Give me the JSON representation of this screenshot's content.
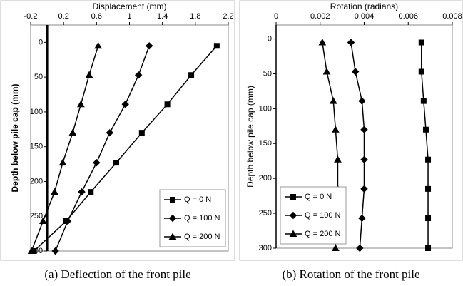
{
  "chart_data": [
    {
      "type": "line",
      "x_label": "Displacement (mm)",
      "y_label": "Depth below pile cap (mm)",
      "caption": "(a) Deflection of the front pile",
      "depth": [
        5,
        47,
        89,
        130,
        173,
        215,
        257,
        300
      ],
      "series": [
        {
          "name": "Q = 0 N",
          "color": "#000000",
          "marker": "square",
          "values": [
            2.06,
            1.75,
            1.46,
            1.15,
            0.84,
            0.53,
            0.23,
            -0.16
          ]
        },
        {
          "name": "Q = 100 N",
          "color": "#000000",
          "marker": "diamond",
          "values": [
            1.24,
            1.11,
            0.95,
            0.76,
            0.6,
            0.42,
            0.25,
            0.1
          ]
        },
        {
          "name": "Q = 200 N",
          "color": "#000000",
          "marker": "triangle",
          "values": [
            0.62,
            0.51,
            0.41,
            0.31,
            0.19,
            0.09,
            -0.05,
            -0.19
          ]
        }
      ],
      "xlim": [
        -0.2,
        2.2
      ],
      "xticks": [
        -0.2,
        0.2,
        0.6,
        1,
        1.4,
        1.8,
        2.2
      ],
      "ylim": [
        -25,
        300
      ],
      "yticks": [
        0,
        50,
        100,
        150,
        200,
        250,
        300
      ],
      "y_inverted": true,
      "x_axis_position": "top",
      "y_axis_crosses": 0,
      "legend": "lower right"
    },
    {
      "type": "line",
      "x_label": "Rotation (radians)",
      "y_label": "Depth below pile cap (mm)",
      "caption": "(b) Rotation of the front pile",
      "depth": [
        5,
        47,
        89,
        130,
        173,
        215,
        257,
        300
      ],
      "series": [
        {
          "name": "Q = 0 N",
          "color": "#000000",
          "marker": "square",
          "values": [
            0.0066,
            0.0066,
            0.0067,
            0.0068,
            0.0069,
            0.0069,
            0.0069,
            0.0069
          ]
        },
        {
          "name": "Q = 100 N",
          "color": "#000000",
          "marker": "diamond",
          "values": [
            0.0034,
            0.0036,
            0.0039,
            0.004,
            0.004,
            0.004,
            0.0039,
            0.0038
          ]
        },
        {
          "name": "Q = 200 N",
          "color": "#000000",
          "marker": "triangle",
          "values": [
            0.0021,
            0.0023,
            0.0026,
            0.0027,
            0.0028,
            0.0028,
            0.0027,
            0.0027
          ]
        }
      ],
      "xlim": [
        0,
        0.008
      ],
      "xticks": [
        0,
        0.002,
        0.004,
        0.006,
        0.008
      ],
      "ylim": [
        -20,
        300
      ],
      "yticks": [
        0,
        50,
        100,
        150,
        200,
        250,
        300
      ],
      "y_inverted": true,
      "x_axis_position": "top",
      "y_axis_crosses": 0,
      "legend": "lower left"
    }
  ]
}
